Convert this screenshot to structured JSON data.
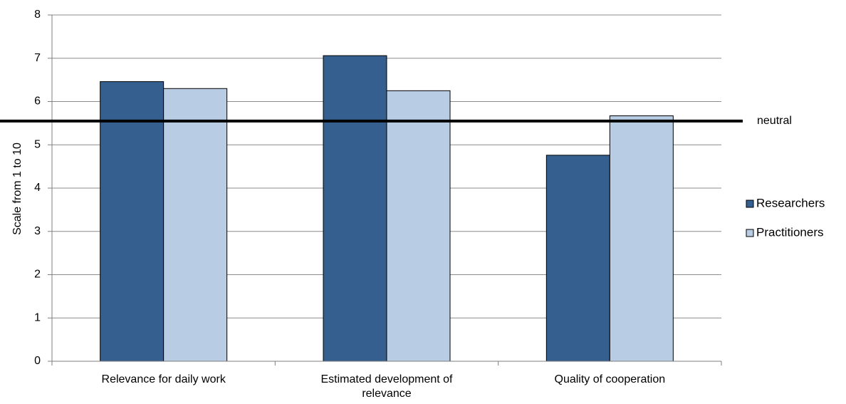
{
  "chart_data": {
    "type": "bar",
    "categories": [
      [
        "Relevance for daily work"
      ],
      [
        "Estimated development of",
        "relevance"
      ],
      [
        "Quality of cooperation"
      ]
    ],
    "series": [
      {
        "name": "Researchers",
        "values": [
          6.46,
          7.06,
          4.76
        ],
        "color": "#355f8e"
      },
      {
        "name": "Practitioners",
        "values": [
          6.3,
          6.25,
          5.67
        ],
        "color": "#b8cce4"
      }
    ],
    "ylabel": "Scale from 1 to 10",
    "ylim": [
      0,
      8
    ],
    "yticks": [
      "0",
      "1",
      "2",
      "3",
      "4",
      "5",
      "6",
      "7",
      "8"
    ],
    "grid": true,
    "legend": "right",
    "reference_line": {
      "label": "neutral",
      "value": 5.55
    }
  }
}
